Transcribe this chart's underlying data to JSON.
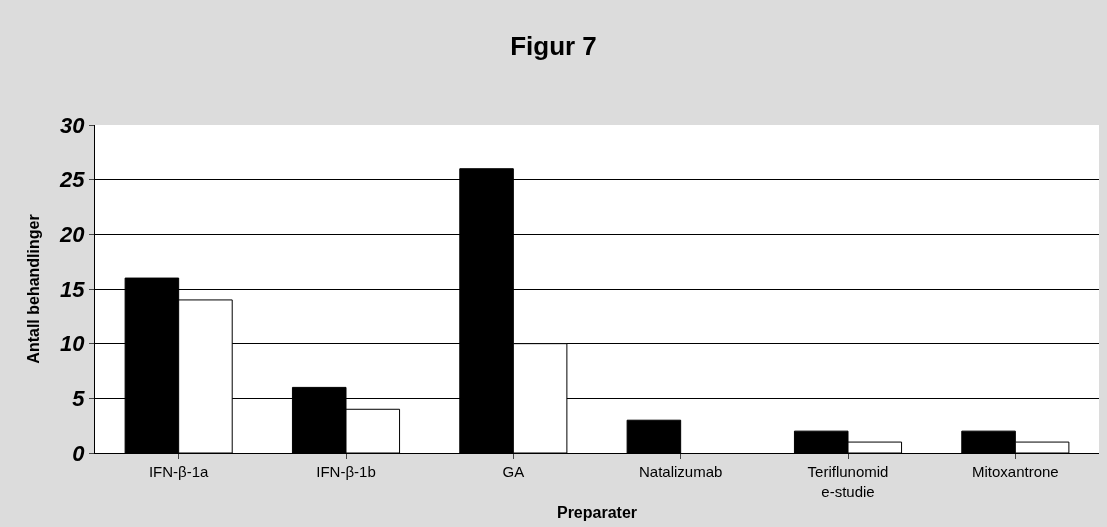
{
  "chart_data": {
    "type": "bar",
    "title": "Figur 7",
    "xlabel": "Preparater",
    "ylabel": "Antall behandlinger",
    "categories": [
      "IFN-β-1a",
      "IFN-β-1b",
      "GA",
      "Natalizumab",
      "Teriflunomide-studie",
      "Mitoxantrone"
    ],
    "series": [
      {
        "color": "#000000",
        "values": [
          16,
          6,
          26,
          3,
          2,
          2
        ]
      },
      {
        "color": "#ffffff",
        "values": [
          14,
          4,
          10,
          null,
          1,
          1
        ]
      }
    ],
    "ylim": [
      0,
      30
    ],
    "yticks": [
      0,
      5,
      10,
      15,
      20,
      25,
      30
    ],
    "grid": "y",
    "legend": false
  }
}
